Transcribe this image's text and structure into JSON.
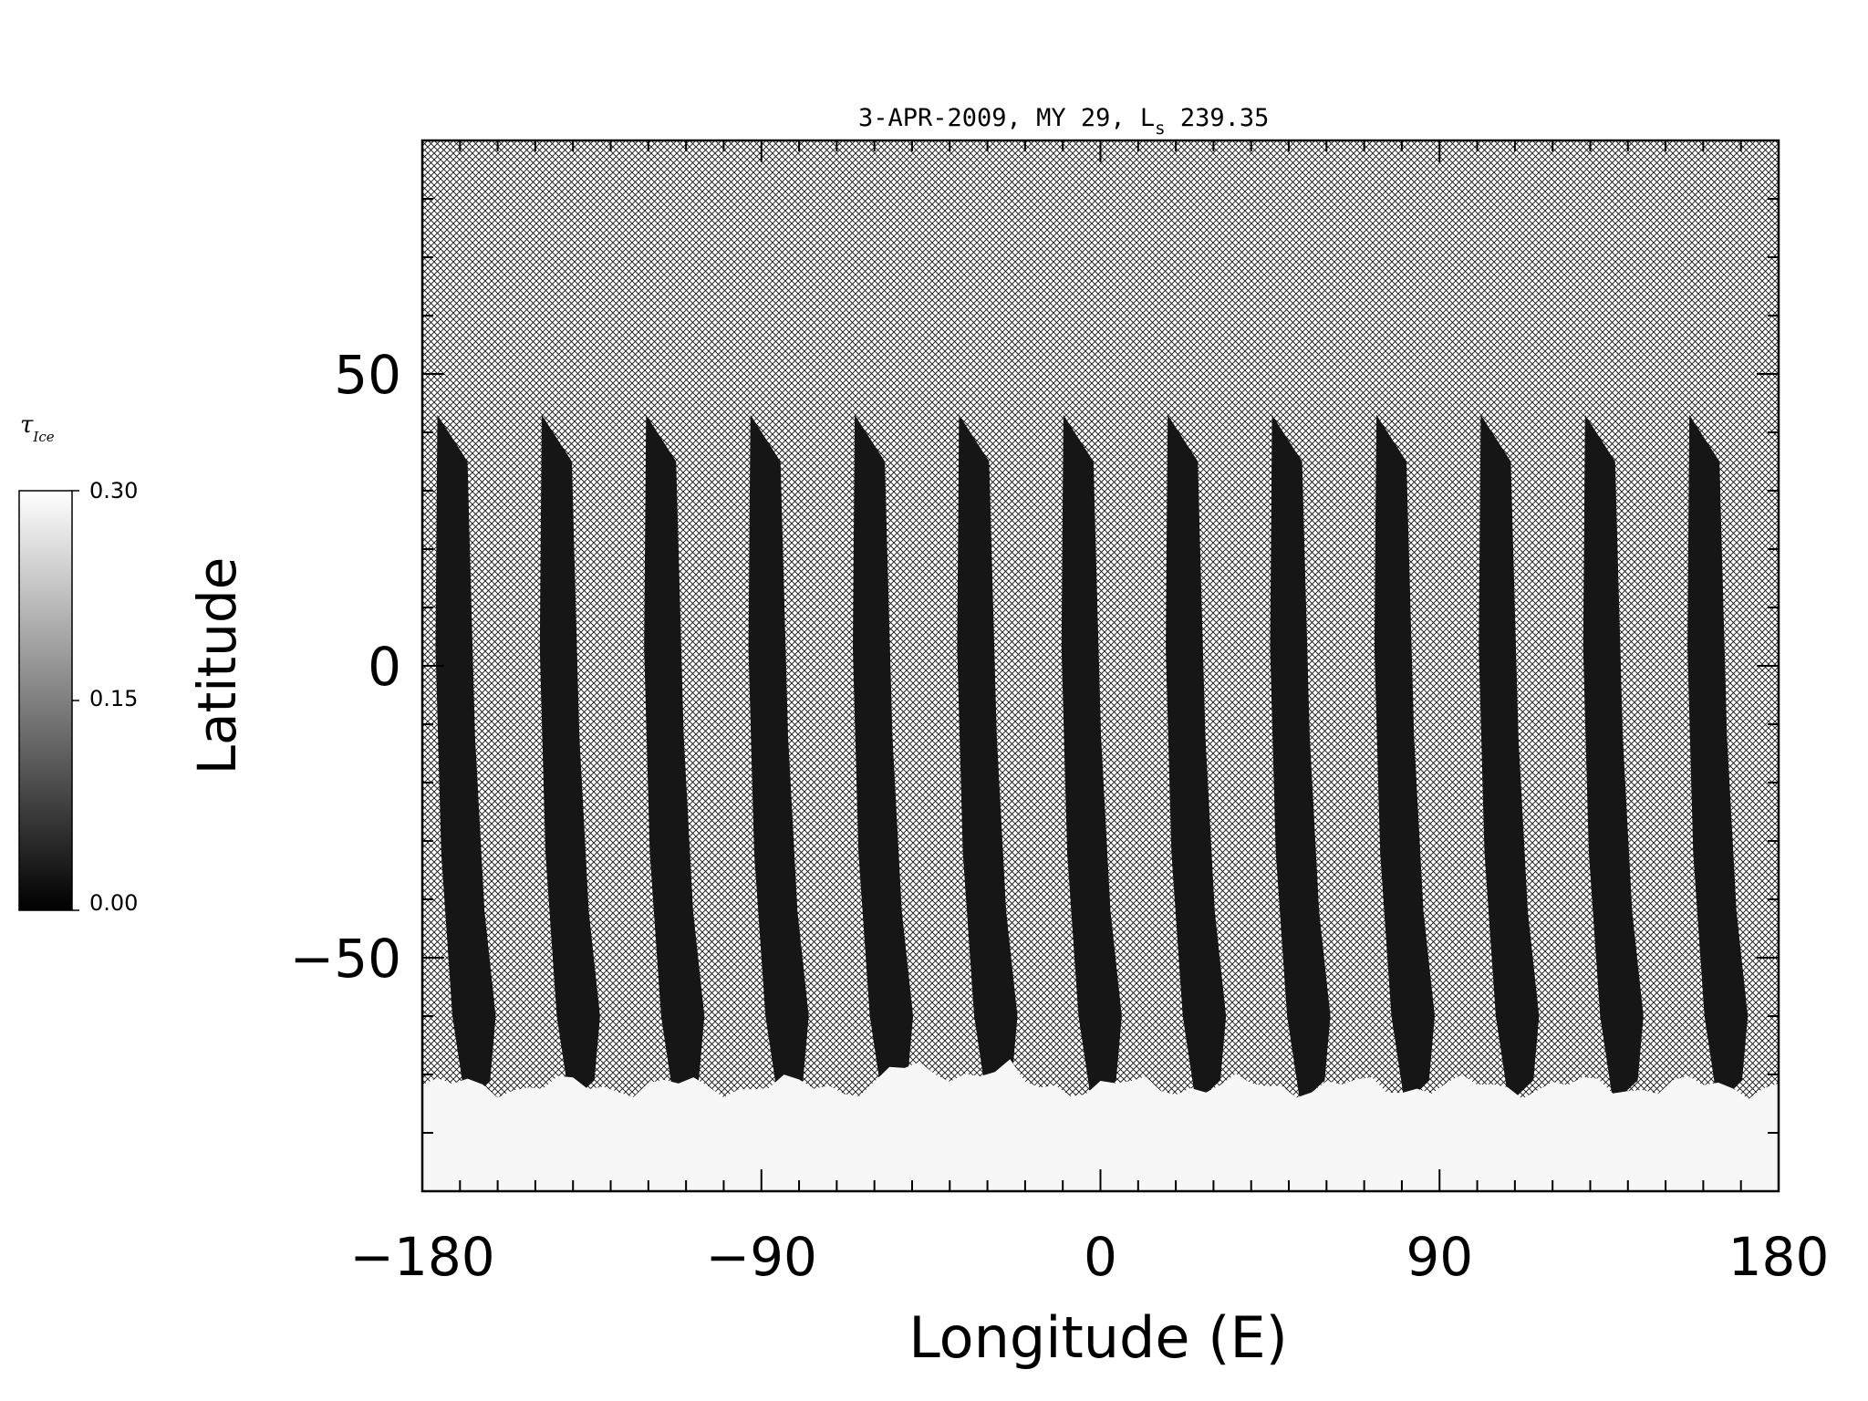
{
  "chart_data": {
    "type": "heatmap",
    "title": "3-APR-2009, MY 29,  L",
    "title_subscript": "s",
    "title_tail": " 239.35",
    "xlabel": "Longitude (E)",
    "ylabel": "Latitude",
    "xlim": [
      -180,
      180
    ],
    "ylim": [
      -90,
      90
    ],
    "x_ticks": [
      -180,
      -90,
      0,
      90,
      180
    ],
    "x_tick_labels": [
      "−180",
      "−90",
      "0",
      "90",
      "180"
    ],
    "y_ticks": [
      -50,
      0,
      50
    ],
    "y_tick_labels": [
      "−50",
      "0",
      "50"
    ],
    "x_minor_step": 10,
    "y_minor_step": 10,
    "colorbar": {
      "label": "τ",
      "label_subscript": "Ice",
      "min": 0.0,
      "max": 0.3,
      "ticks": [
        0.0,
        0.15,
        0.3
      ],
      "tick_labels": [
        "0.00",
        "0.15",
        "0.30"
      ],
      "colormap": "grayscale"
    },
    "no_data_fill": "crosshatch",
    "swath_count": 13,
    "swath_top_latitude": 43,
    "swath_bottom_latitude": -72,
    "south_cap_latitude": -72,
    "south_cap_ice_opacity": 0.3,
    "swath_ice_opacity": 0.0,
    "colors": {
      "swath": "#161616",
      "cap": "#f7f7f7",
      "hatch": "#111111",
      "frame": "#000000"
    }
  }
}
